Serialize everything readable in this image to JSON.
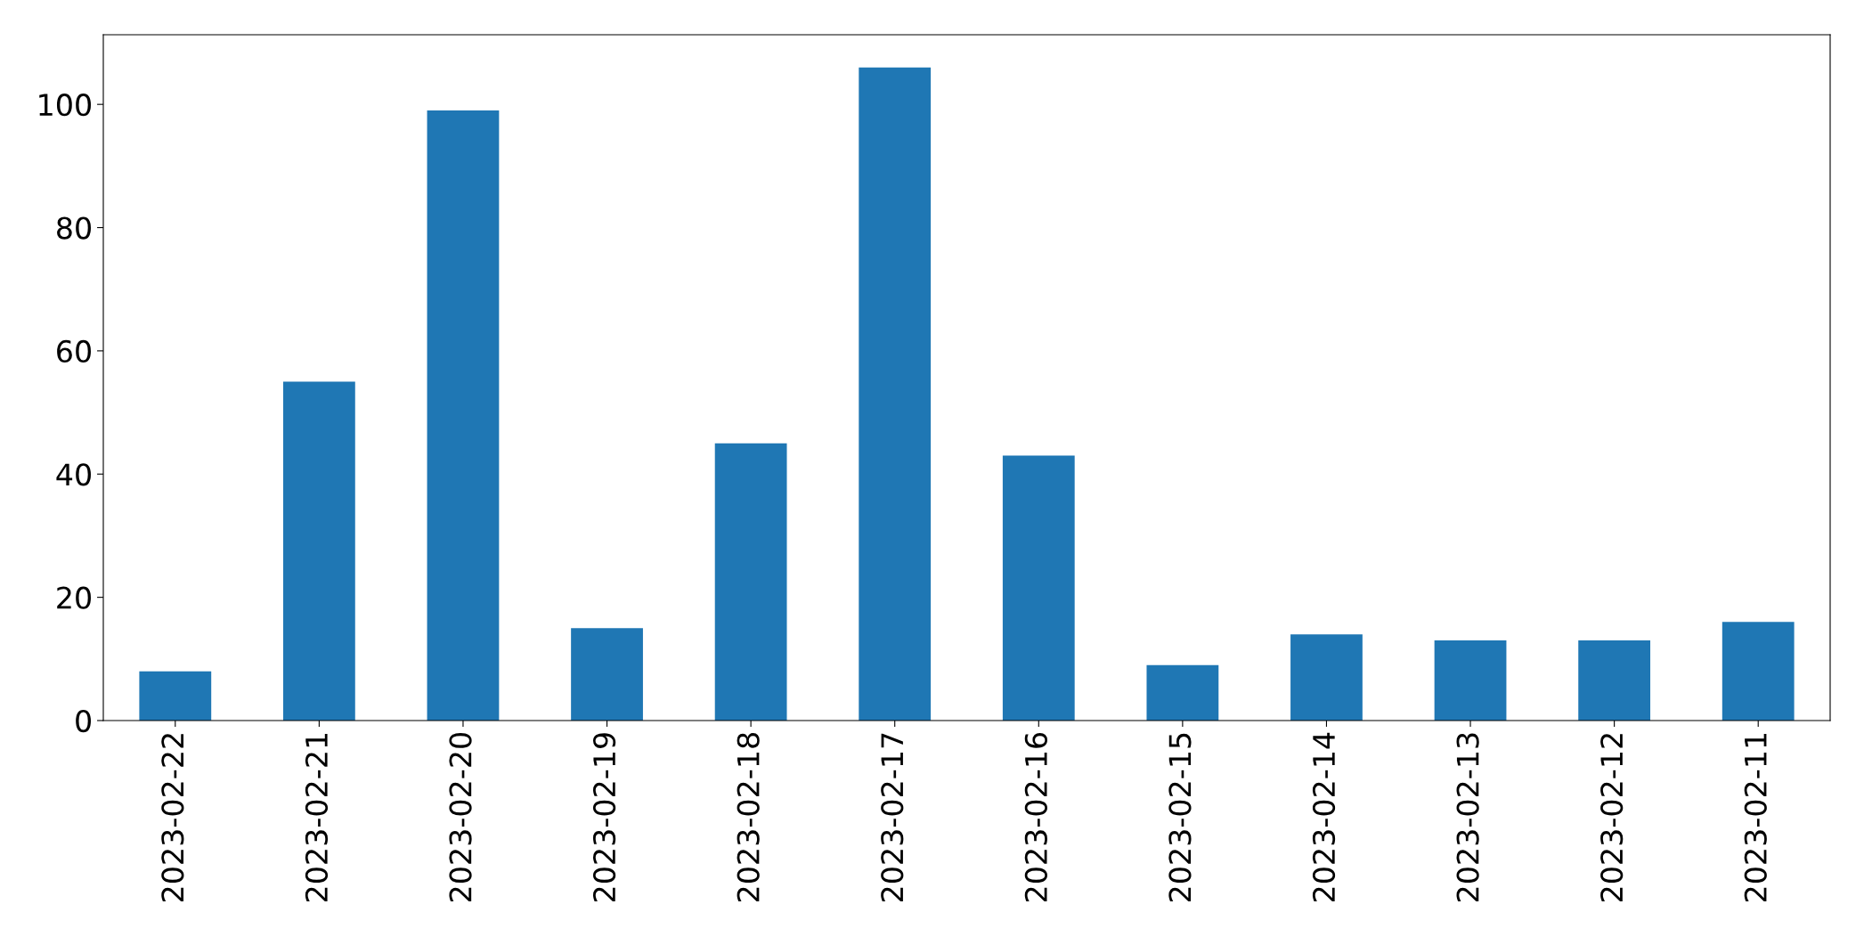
{
  "chart_data": {
    "type": "bar",
    "categories": [
      "2023-02-22",
      "2023-02-21",
      "2023-02-20",
      "2023-02-19",
      "2023-02-18",
      "2023-02-17",
      "2023-02-16",
      "2023-02-15",
      "2023-02-14",
      "2023-02-13",
      "2023-02-12",
      "2023-02-11"
    ],
    "values": [
      8,
      55,
      99,
      15,
      45,
      106,
      43,
      9,
      14,
      13,
      13,
      16
    ],
    "color": "#1f77b4",
    "ylim": [
      0,
      111.3
    ],
    "yticks": [
      0,
      20,
      40,
      60,
      80,
      100
    ],
    "grid": false,
    "legend": false
  }
}
